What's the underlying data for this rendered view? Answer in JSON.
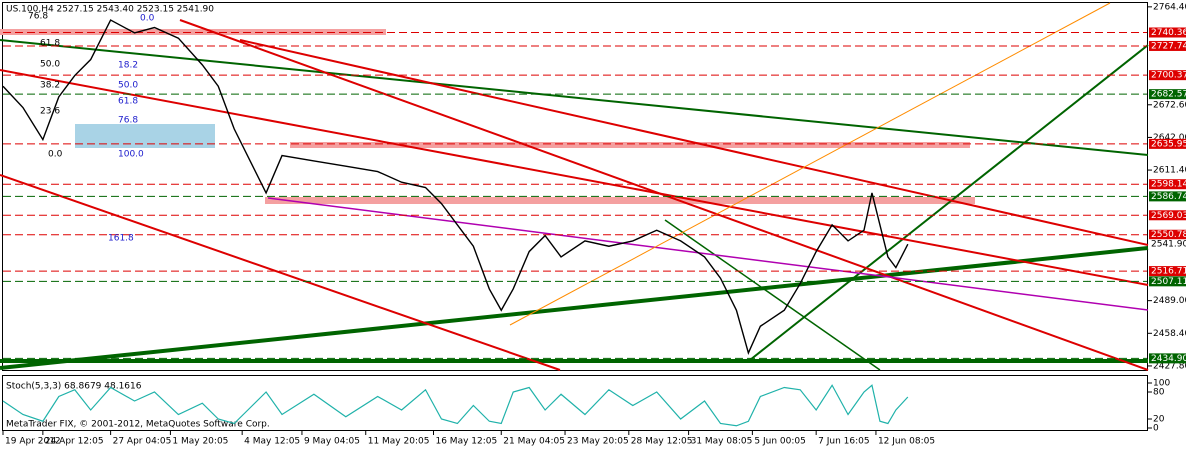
{
  "chart_data": [
    {
      "type": "line",
      "title": "US.100,H4  2527.15 2543.40 2523.15 2541.90",
      "color": "#000000",
      "x": [
        0,
        5,
        10,
        14,
        18,
        22,
        27,
        33,
        38,
        44,
        50,
        54,
        58,
        62,
        66,
        70,
        78,
        86,
        94,
        100,
        106,
        110,
        114,
        118,
        122,
        125,
        128,
        132,
        136,
        140,
        146,
        152,
        158,
        164,
        170,
        176,
        180,
        184,
        187,
        190,
        196,
        200,
        204,
        208,
        212,
        216,
        218,
        220,
        222,
        224,
        227
      ],
      "values": [
        2690,
        2670,
        2640,
        2680,
        2700,
        2715,
        2752,
        2740,
        2745,
        2735,
        2710,
        2690,
        2650,
        2620,
        2590,
        2625,
        2620,
        2615,
        2610,
        2600,
        2595,
        2580,
        2560,
        2540,
        2500,
        2480,
        2500,
        2535,
        2550,
        2530,
        2545,
        2540,
        2545,
        2555,
        2545,
        2530,
        2510,
        2480,
        2440,
        2465,
        2480,
        2505,
        2535,
        2560,
        2545,
        2555,
        2590,
        2560,
        2530,
        2520,
        2541.9
      ],
      "xlim": [
        0,
        287
      ],
      "xticks": [
        {
          "value": 0,
          "label": "19 Apr 2012"
        },
        {
          "value": 10,
          "label": "24 Apr 12:05"
        },
        {
          "value": 27,
          "label": "27 Apr 04:05"
        },
        {
          "value": 42,
          "label": "1 May 20:05"
        },
        {
          "value": 60,
          "label": "4 May 12:05"
        },
        {
          "value": 75,
          "label": "9 May 04:05"
        },
        {
          "value": 91,
          "label": "11 May 20:05"
        },
        {
          "value": 108,
          "label": "16 May 12:05"
        },
        {
          "value": 125,
          "label": "21 May 04:05"
        },
        {
          "value": 141,
          "label": "23 May 20:05"
        },
        {
          "value": 157,
          "label": "28 May 12:05"
        },
        {
          "value": 172,
          "label": "31 May 08:05"
        },
        {
          "value": 188,
          "label": "5 Jun 00:05"
        },
        {
          "value": 204,
          "label": "7 Jun 16:05"
        },
        {
          "value": 219,
          "label": "12 Jun 08:05"
        }
      ],
      "ylim": [
        2424,
        2768
      ],
      "yticks": [
        {
          "value": 2764.4,
          "label": "2764.40"
        },
        {
          "value": 2672.6,
          "label": "2672.60"
        },
        {
          "value": 2642,
          "label": "2642.00"
        },
        {
          "value": 2611.4,
          "label": "2611.40"
        },
        {
          "value": 2489,
          "label": "2489.00"
        },
        {
          "value": 2458.4,
          "label": "2458.40"
        },
        {
          "value": 2427.8,
          "label": "2427.80"
        }
      ],
      "levels": [
        {
          "value": 2740.36,
          "label": "2740.36",
          "color": "#dd0000"
        },
        {
          "value": 2727.74,
          "label": "2727.74",
          "color": "#dd0000"
        },
        {
          "value": 2700.37,
          "label": "2700.37",
          "color": "#dd0000"
        },
        {
          "value": 2682.57,
          "label": "2682.57",
          "color": "#006400"
        },
        {
          "value": 2635.95,
          "label": "2635.95",
          "color": "#dd0000"
        },
        {
          "value": 2598.14,
          "label": "2598.14",
          "color": "#dd0000"
        },
        {
          "value": 2586.74,
          "label": "2586.74",
          "color": "#006400"
        },
        {
          "value": 2569.03,
          "label": "2569.03",
          "color": "#dd0000"
        },
        {
          "value": 2550.78,
          "label": "2550.78",
          "color": "#dd0000"
        },
        {
          "value": 2541.9,
          "label": "2541.90",
          "color": "#000000"
        },
        {
          "value": 2516.71,
          "label": "2516.71",
          "color": "#dd0000"
        },
        {
          "value": 2507.11,
          "label": "2507.11",
          "color": "#006400"
        },
        {
          "value": 2434.9,
          "label": "2434.90",
          "color": "#006400"
        }
      ],
      "annotations": [
        "76.8",
        "61.8",
        "50.0",
        "38.2",
        "23.6",
        "0.0",
        "0.0",
        "18.2",
        "50.0",
        "61.8",
        "76.8",
        "100.0",
        "161.8"
      ]
    },
    {
      "type": "line",
      "title": "Stoch(5,3,3) 68.8679 48.1616",
      "color": "#20b2aa",
      "x": [
        0,
        5,
        10,
        14,
        18,
        22,
        27,
        33,
        38,
        44,
        50,
        54,
        58,
        62,
        66,
        70,
        78,
        86,
        94,
        100,
        106,
        110,
        114,
        118,
        122,
        125,
        128,
        132,
        136,
        140,
        146,
        152,
        158,
        164,
        170,
        176,
        180,
        184,
        187,
        190,
        196,
        200,
        204,
        208,
        212,
        216,
        218,
        220,
        222,
        224,
        227
      ],
      "values": [
        60,
        30,
        15,
        70,
        85,
        40,
        90,
        60,
        80,
        30,
        55,
        20,
        10,
        45,
        80,
        30,
        75,
        25,
        70,
        40,
        85,
        20,
        10,
        50,
        15,
        10,
        80,
        90,
        40,
        75,
        30,
        85,
        50,
        80,
        20,
        60,
        10,
        5,
        15,
        70,
        90,
        85,
        40,
        95,
        30,
        80,
        95,
        15,
        10,
        40,
        68.87
      ],
      "ylim": [
        0,
        100
      ],
      "yticks": [
        100,
        80,
        20,
        0
      ],
      "footer": "MetaTrader FIX, © 2001-2012, MetaQuotes Software Corp."
    }
  ]
}
